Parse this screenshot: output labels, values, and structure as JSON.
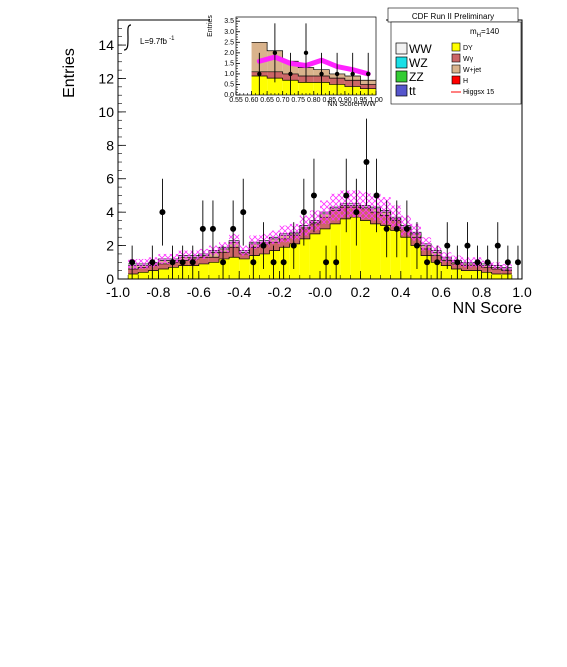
{
  "chart_data": [
    {
      "type": "bar",
      "title": "CDF Run II Preliminary",
      "xlabel": "NN Score",
      "ylabel": "Entries",
      "xlim": [
        -1.0,
        1.0
      ],
      "ylim": [
        0,
        15.5
      ],
      "xticks": [
        "-1.0",
        "-0.8",
        "-0.6",
        "-0.4",
        "-0.2",
        "-0.0",
        "0.2",
        "0.4",
        "0.6",
        "0.8",
        "1.0"
      ],
      "yticks": [
        "0",
        "2",
        "4",
        "6",
        "8",
        "10",
        "12",
        "14"
      ],
      "luminosity_label": "L=9.7fb",
      "luminosity_sup": "-1",
      "mass_label": "m",
      "mass_sub": "H",
      "mass_value": "=140",
      "legend": {
        "placement": "top-right",
        "entries": [
          {
            "label": "WW",
            "color": "#f2f2f2"
          },
          {
            "label": "WZ",
            "color": "#19dfe6"
          },
          {
            "label": "ZZ",
            "color": "#33cc33"
          },
          {
            "label": "tt",
            "color": "#5555cc"
          },
          {
            "label": "DY",
            "color": "#ffff00"
          },
          {
            "label": "Wγ",
            "color": "#cc6666"
          },
          {
            "label": "W+jet",
            "color": "#d9b38c"
          },
          {
            "label": "H",
            "color": "#ff0000"
          },
          {
            "label": "Higgsx 15",
            "color": "#ff0000"
          }
        ]
      },
      "bin_edges": [
        -0.95,
        -0.9,
        -0.85,
        -0.8,
        -0.75,
        -0.7,
        -0.65,
        -0.6,
        -0.55,
        -0.5,
        -0.45,
        -0.4,
        -0.35,
        -0.3,
        -0.25,
        -0.2,
        -0.15,
        -0.1,
        -0.05,
        0.0,
        0.05,
        0.1,
        0.15,
        0.2,
        0.25,
        0.3,
        0.35,
        0.4,
        0.45,
        0.5,
        0.55,
        0.6,
        0.65,
        0.7,
        0.75,
        0.8,
        0.85,
        0.9,
        0.95,
        1.0
      ],
      "stack": {
        "DY": [
          0.3,
          0.4,
          0.5,
          0.6,
          0.7,
          0.8,
          0.8,
          0.9,
          1.0,
          1.2,
          1.3,
          1.2,
          1.4,
          1.5,
          1.7,
          1.9,
          2.1,
          2.4,
          2.7,
          3.0,
          3.3,
          3.6,
          3.7,
          3.5,
          3.3,
          3.2,
          2.9,
          2.5,
          2.0,
          1.4,
          1.0,
          0.8,
          0.6,
          0.5,
          0.5,
          0.4,
          0.3,
          0.3
        ],
        "Wgamma": [
          0.3,
          0.3,
          0.3,
          0.3,
          0.3,
          0.3,
          0.4,
          0.4,
          0.3,
          0.4,
          0.6,
          0.3,
          0.5,
          0.6,
          0.5,
          0.5,
          0.5,
          0.6,
          0.6,
          0.7,
          0.8,
          0.7,
          0.6,
          0.7,
          0.7,
          0.6,
          0.6,
          0.5,
          0.5,
          0.4,
          0.4,
          0.3,
          0.3,
          0.3,
          0.3,
          0.3,
          0.3,
          0.2
        ],
        "Wjet": [
          0.2,
          0.1,
          0.1,
          0.2,
          0.1,
          0.2,
          0.1,
          0.1,
          0.3,
          0.2,
          0.3,
          0.1,
          0.2,
          0.1,
          0.2,
          0.2,
          0.1,
          0.1,
          0.1,
          0.2,
          0.1,
          0.1,
          0.1,
          0.1,
          0.2,
          0.2,
          0.1,
          0.1,
          0.2,
          0.2,
          0.2,
          0.1,
          0.1,
          0.1,
          0.1,
          0.1,
          0.1,
          0.1
        ],
        "WW": [
          0.1,
          0.1,
          0.1,
          0.1,
          0.1,
          0.1,
          0.1,
          0.1,
          0.1,
          0.1,
          0.1,
          0.1,
          0.1,
          0.1,
          0.1,
          0.1,
          0.1,
          0.1,
          0.1,
          0.1,
          0.1,
          0.1,
          0.1,
          0.1,
          0.1,
          0.1,
          0.1,
          0.1,
          0.1,
          0.1,
          0.1,
          0.1,
          0.1,
          0.1,
          0.1,
          0.1,
          0.1,
          0.1
        ]
      },
      "uncertainty_band": [
        0.3,
        0.3,
        0.3,
        0.3,
        0.3,
        0.3,
        0.3,
        0.3,
        0.3,
        0.3,
        0.4,
        0.3,
        0.4,
        0.4,
        0.4,
        0.5,
        0.5,
        0.6,
        0.6,
        0.7,
        0.8,
        0.8,
        0.8,
        0.8,
        0.8,
        0.8,
        0.7,
        0.6,
        0.5,
        0.4,
        0.3,
        0.3,
        0.3,
        0.3,
        0.3,
        0.2,
        0.2,
        0.2
      ],
      "data_points": {
        "x": [
          -0.93,
          -0.83,
          -0.78,
          -0.73,
          -0.68,
          -0.63,
          -0.58,
          -0.53,
          -0.48,
          -0.43,
          -0.38,
          -0.33,
          -0.28,
          -0.23,
          -0.18,
          -0.13,
          -0.08,
          -0.03,
          0.03,
          0.08,
          0.13,
          0.18,
          0.23,
          0.28,
          0.33,
          0.38,
          0.43,
          0.48,
          0.53,
          0.58,
          0.63,
          0.68,
          0.73,
          0.78,
          0.83,
          0.88,
          0.93,
          0.98
        ],
        "y": [
          1,
          1,
          4,
          1,
          1,
          1,
          3,
          3,
          1,
          3,
          4,
          1,
          2,
          1,
          1,
          2,
          4,
          5,
          1,
          1,
          5,
          4,
          7,
          5,
          3,
          3,
          3,
          2,
          1,
          1,
          2,
          1,
          2,
          1,
          1,
          2,
          1,
          1
        ],
        "err": [
          1.0,
          1.0,
          2.0,
          1.0,
          1.0,
          1.0,
          1.7,
          1.7,
          1.0,
          1.7,
          2.0,
          1.0,
          1.4,
          1.0,
          1.0,
          1.4,
          2.0,
          2.2,
          1.0,
          1.0,
          2.2,
          2.0,
          2.6,
          2.2,
          1.7,
          1.7,
          1.7,
          1.4,
          1.0,
          1.0,
          1.4,
          1.0,
          1.4,
          1.0,
          1.0,
          1.4,
          1.0,
          1.0
        ]
      },
      "higgs_line": [
        0.0,
        0.0,
        0.0,
        0.0,
        0.0,
        0.0,
        0.0,
        0.0,
        0.0,
        0.0,
        0.0,
        0.0,
        0.0,
        0.0,
        0.0,
        0.0,
        0.0,
        0.0,
        0.0,
        0.0,
        0.0,
        0.0,
        0.0,
        0.0,
        0.0,
        0.0,
        0.0,
        0.0,
        0.0,
        0.0,
        0.0,
        0.0,
        0.0,
        0.0,
        0.0,
        0.0,
        0.0,
        0.0
      ]
    },
    {
      "type": "bar",
      "xlabel": "NN ScoreHWW",
      "ylabel": "Entries",
      "xlim": [
        0.55,
        1.0
      ],
      "ylim": [
        0,
        3.7
      ],
      "xticks": [
        "0.55",
        "0.60",
        "0.65",
        "0.70",
        "0.75",
        "0.80",
        "0.85",
        "0.90",
        "0.95",
        "1.00"
      ],
      "yticks": [
        "0.0",
        "0.5",
        "1.0",
        "1.5",
        "2.0",
        "2.5",
        "3.0",
        "3.5"
      ],
      "bin_edges": [
        0.6,
        0.65,
        0.7,
        0.75,
        0.8,
        0.85,
        0.9,
        0.95,
        1.0
      ],
      "stack": {
        "DY": [
          0.9,
          0.8,
          0.7,
          0.6,
          0.6,
          0.5,
          0.4,
          0.3
        ],
        "Wgamma": [
          0.2,
          0.3,
          0.3,
          0.3,
          0.3,
          0.3,
          0.3,
          0.2
        ],
        "Wjet": [
          1.4,
          1.0,
          0.6,
          0.4,
          0.3,
          0.2,
          0.2,
          0.2
        ]
      },
      "higgs_band": [
        1.6,
        1.8,
        1.5,
        1.4,
        1.65,
        1.35,
        1.2,
        1.0
      ],
      "data_points": {
        "x": [
          0.625,
          0.675,
          0.725,
          0.775,
          0.825,
          0.875,
          0.925,
          0.975
        ],
        "y": [
          1,
          2,
          1,
          2,
          1,
          1,
          1,
          1
        ],
        "err": [
          1.0,
          1.4,
          1.0,
          1.4,
          1.0,
          1.0,
          1.0,
          1.0
        ]
      }
    }
  ]
}
